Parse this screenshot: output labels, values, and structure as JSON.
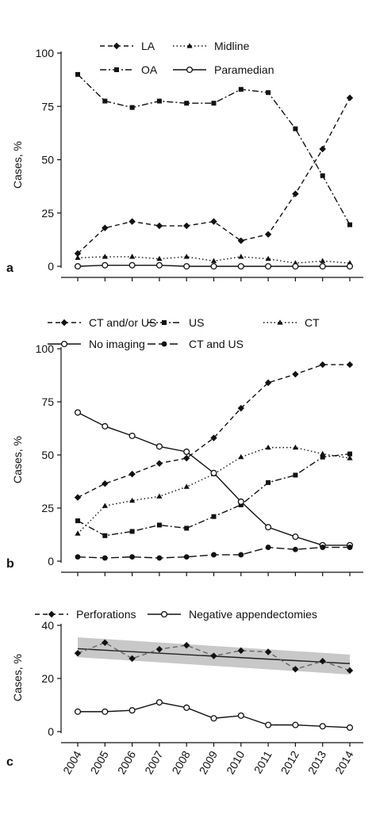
{
  "chart_data": [
    {
      "panel": "a",
      "type": "line",
      "ylabel": "Cases, %",
      "ylim": [
        0,
        100
      ],
      "yticks": [
        "0",
        "25",
        "50",
        "75",
        "100"
      ],
      "categories": [
        "2004",
        "2005",
        "2006",
        "2007",
        "2008",
        "2009",
        "2010",
        "2011",
        "2012",
        "2013",
        "2014"
      ],
      "legend": "top",
      "series": [
        {
          "name": "LA",
          "style": "dashed",
          "marker": "diamond",
          "values": [
            6,
            18,
            21,
            19,
            19,
            21,
            12,
            15,
            34,
            55,
            79
          ]
        },
        {
          "name": "Midline",
          "style": "dotted",
          "marker": "triangle",
          "values": [
            4,
            4.5,
            4.5,
            3.5,
            4.5,
            2.5,
            4.5,
            3.5,
            1.5,
            2.5,
            1.5
          ]
        },
        {
          "name": "OA",
          "style": "dashdot",
          "marker": "square",
          "values": [
            90,
            77.5,
            74.5,
            77.5,
            76.5,
            76.5,
            83,
            81.5,
            64.5,
            42.5,
            19.5
          ]
        },
        {
          "name": "Paramedian",
          "style": "solid",
          "marker": "circle-open",
          "values": [
            0,
            0.5,
            0.5,
            0.5,
            0,
            0,
            0,
            0,
            0,
            0,
            0
          ]
        }
      ]
    },
    {
      "panel": "b",
      "type": "line",
      "ylabel": "Cases, %",
      "ylim": [
        0,
        100
      ],
      "yticks": [
        "0",
        "25",
        "50",
        "75",
        "100"
      ],
      "categories": [
        "2004",
        "2005",
        "2006",
        "2007",
        "2008",
        "2009",
        "2010",
        "2011",
        "2012",
        "2013",
        "2014"
      ],
      "legend": "top",
      "series": [
        {
          "name": "CT and/or US",
          "style": "dashed",
          "marker": "diamond",
          "values": [
            30,
            36.5,
            41,
            46,
            48.5,
            58,
            72,
            84,
            88,
            92.5,
            92.5
          ]
        },
        {
          "name": "US",
          "style": "dashdot",
          "marker": "square",
          "values": [
            19,
            12,
            14,
            17,
            15.5,
            21,
            26.5,
            37,
            40.5,
            49,
            50.5
          ]
        },
        {
          "name": "CT",
          "style": "dotted",
          "marker": "triangle",
          "values": [
            13,
            26,
            28.5,
            30.5,
            35,
            41,
            49,
            53.5,
            53.5,
            50.5,
            48.5
          ]
        },
        {
          "name": "No imaging",
          "style": "solid",
          "marker": "circle-open",
          "values": [
            70,
            63.5,
            59,
            54,
            51.5,
            41.5,
            28,
            16,
            11.5,
            7.5,
            7.5
          ]
        },
        {
          "name": "CT and US",
          "style": "dashed-long",
          "marker": "circle-filled",
          "values": [
            2,
            1.5,
            2,
            1.5,
            2,
            3,
            3,
            6.5,
            5.5,
            6.5,
            6.5
          ]
        }
      ]
    },
    {
      "panel": "c",
      "type": "line",
      "ylabel": "Cases, %",
      "ylim": [
        0,
        40
      ],
      "yticks": [
        "0",
        "20",
        "40"
      ],
      "categories": [
        "2004",
        "2005",
        "2006",
        "2007",
        "2008",
        "2009",
        "2010",
        "2011",
        "2012",
        "2013",
        "2014"
      ],
      "legend": "top",
      "series": [
        {
          "name": "Perforations",
          "style": "dashed-gray",
          "marker": "diamond",
          "values": [
            29.5,
            33.5,
            27.5,
            31,
            32.5,
            28.5,
            30.5,
            30,
            23.5,
            26.5,
            23
          ]
        },
        {
          "name": "Negative appendectomies",
          "style": "solid",
          "marker": "circle-open",
          "values": [
            7.5,
            7.5,
            8,
            11,
            9,
            5,
            6,
            2.5,
            2.5,
            2,
            1.5
          ]
        }
      ],
      "trend": {
        "start": 31.2,
        "end": 25.6,
        "band_upper_start": 35.5,
        "band_upper_end": 29,
        "band_lower_start": 28,
        "band_lower_end": 21.5
      }
    }
  ],
  "colors": {
    "line": "#111111",
    "band": "#c8c8c8",
    "trend": "#222222"
  }
}
